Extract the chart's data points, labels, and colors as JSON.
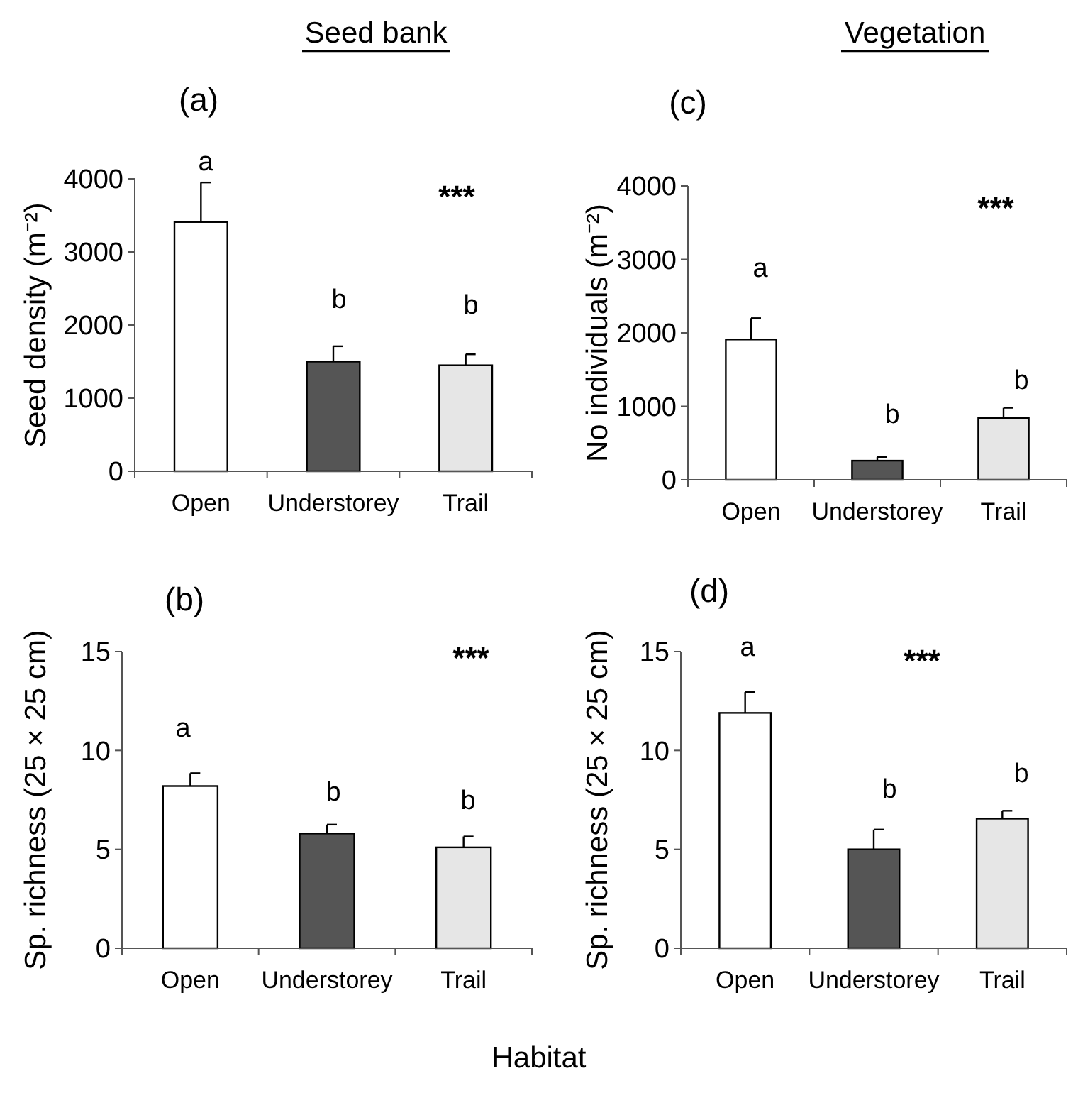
{
  "chart_data": [
    {
      "type": "bar",
      "title": "(a)",
      "subtitle": "Seed bank",
      "ylabel": "Seed density (m⁻²)",
      "categories": [
        "Open",
        "Understorey",
        "Trail"
      ],
      "values": [
        3410,
        1500,
        1450
      ],
      "errors": [
        540,
        210,
        150
      ],
      "colors": [
        "#ffffff",
        "#555555",
        "#e6e6e6"
      ],
      "ylim": [
        0,
        4000
      ],
      "yticks": [
        0,
        1000,
        2000,
        3000,
        4000
      ],
      "grid": false,
      "annotations": [
        "a",
        "b",
        "b",
        "***"
      ]
    },
    {
      "type": "bar",
      "title": "(b)",
      "xlabel": "Habitat",
      "ylabel": "Sp. richness (25 × 25 cm)",
      "categories": [
        "Open",
        "Understorey",
        "Trail"
      ],
      "values": [
        8.2,
        5.8,
        5.1
      ],
      "errors": [
        0.65,
        0.45,
        0.55
      ],
      "colors": [
        "#ffffff",
        "#555555",
        "#e6e6e6"
      ],
      "ylim": [
        0,
        15
      ],
      "yticks": [
        0,
        5,
        10,
        15
      ],
      "grid": false,
      "annotations": [
        "a",
        "b",
        "b",
        "***"
      ]
    },
    {
      "type": "bar",
      "title": "(c)",
      "subtitle": "Vegetation",
      "ylabel": "No individuals (m⁻²)",
      "categories": [
        "Open",
        "Understorey",
        "Trail"
      ],
      "values": [
        1910,
        260,
        840
      ],
      "errors": [
        290,
        50,
        140
      ],
      "colors": [
        "#ffffff",
        "#555555",
        "#e6e6e6"
      ],
      "ylim": [
        0,
        4000
      ],
      "yticks": [
        0,
        1000,
        2000,
        3000,
        4000
      ],
      "grid": false,
      "annotations": [
        "a",
        "b",
        "b",
        "***"
      ]
    },
    {
      "type": "bar",
      "title": "(d)",
      "ylabel": "Sp. richness (25 × 25 cm)",
      "categories": [
        "Open",
        "Understorey",
        "Trail"
      ],
      "values": [
        11.9,
        5.0,
        6.55
      ],
      "errors": [
        1.05,
        1.0,
        0.4
      ],
      "colors": [
        "#ffffff",
        "#555555",
        "#e6e6e6"
      ],
      "ylim": [
        0,
        15
      ],
      "yticks": [
        0,
        5,
        10,
        15
      ],
      "grid": false,
      "annotations": [
        "a",
        "b",
        "b",
        "***"
      ]
    }
  ]
}
